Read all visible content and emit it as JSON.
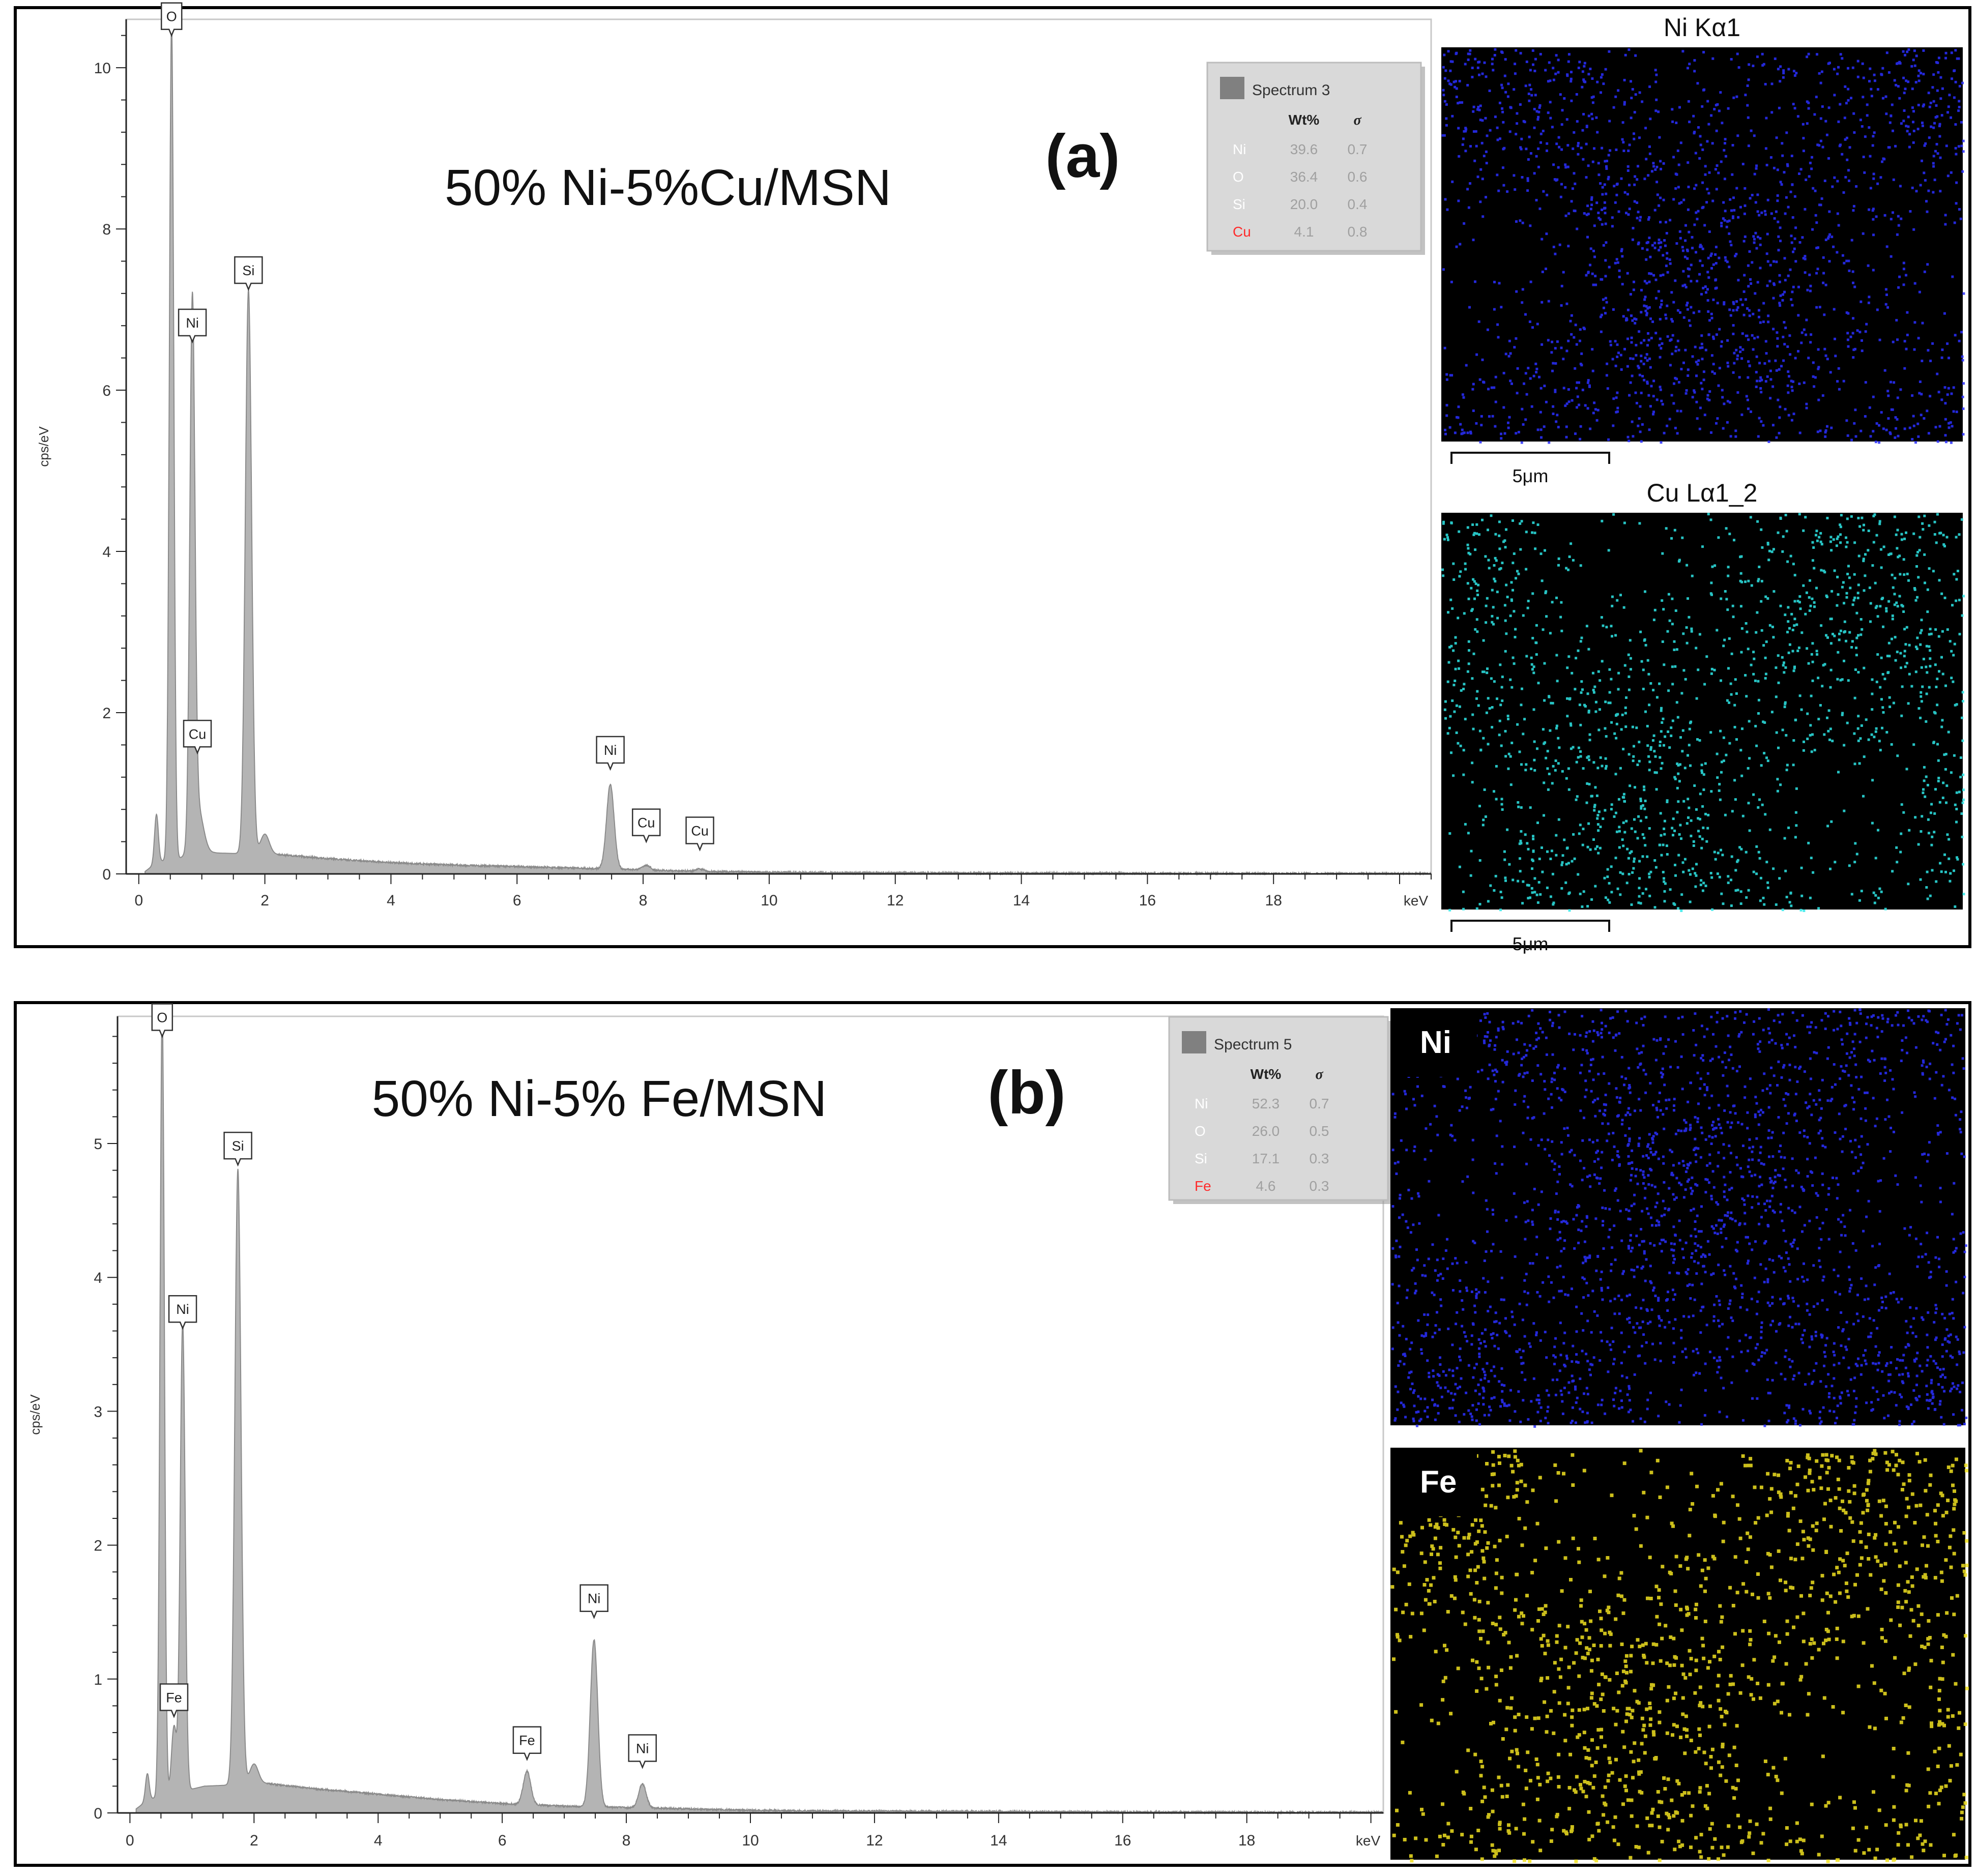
{
  "chart_data": [
    {
      "type": "area",
      "panel_label": "(a)",
      "sample": "50% Ni-5%Cu/MSN",
      "ylabel": "cps/eV",
      "xlabel": "keV",
      "xlim": [
        -0.2,
        20.5
      ],
      "ylim": [
        0,
        10.6
      ],
      "xticks": [
        "0",
        "2",
        "4",
        "6",
        "8",
        "10",
        "12",
        "14",
        "16",
        "18"
      ],
      "yticks": [
        "0",
        "2",
        "4",
        "6",
        "8",
        "10"
      ],
      "baseline": [
        [
          0.1,
          0.03
        ],
        [
          0.3,
          0.15
        ],
        [
          1.2,
          0.26
        ],
        [
          2.2,
          0.24
        ],
        [
          3,
          0.19
        ],
        [
          4,
          0.14
        ],
        [
          5,
          0.11
        ],
        [
          6,
          0.09
        ],
        [
          7,
          0.07
        ],
        [
          8,
          0.05
        ],
        [
          9,
          0.03
        ],
        [
          10,
          0.02
        ],
        [
          11,
          0.015
        ],
        [
          14,
          0.01
        ],
        [
          18,
          0.005
        ],
        [
          20.5,
          0.005
        ]
      ],
      "peaks": [
        {
          "x": 0.28,
          "h": 0.6,
          "w": 0.03
        },
        {
          "x": 0.52,
          "h": 10.4,
          "w": 0.035
        },
        {
          "x": 0.85,
          "h": 6.6,
          "w": 0.04
        },
        {
          "x": 0.93,
          "h": 0.6,
          "w": 0.09
        },
        {
          "x": 1.74,
          "h": 7.0,
          "w": 0.05
        },
        {
          "x": 2.0,
          "h": 0.25,
          "w": 0.07
        },
        {
          "x": 7.48,
          "h": 1.05,
          "w": 0.06
        },
        {
          "x": 8.05,
          "h": 0.06,
          "w": 0.06
        },
        {
          "x": 8.9,
          "h": 0.03,
          "w": 0.06
        }
      ],
      "peak_labels": [
        {
          "text": "O",
          "x": 0.52,
          "y": 10.4
        },
        {
          "text": "Ni",
          "x": 0.85,
          "y": 6.6
        },
        {
          "text": "Si",
          "x": 1.74,
          "y": 7.25
        },
        {
          "text": "Cu",
          "x": 0.93,
          "y": 1.5
        },
        {
          "text": "Ni",
          "x": 7.48,
          "y": 1.3
        },
        {
          "text": "Cu",
          "x": 8.05,
          "y": 0.4
        },
        {
          "text": "Cu",
          "x": 8.9,
          "y": 0.3
        }
      ],
      "legend": {
        "title": "Spectrum 3",
        "headers": [
          "Wt%",
          "σ"
        ],
        "rows": [
          {
            "el": "Ni",
            "wt": "39.6",
            "sigma": "0.7",
            "color": "#ffffff"
          },
          {
            "el": "O",
            "wt": "36.4",
            "sigma": "0.6",
            "color": "#ffffff"
          },
          {
            "el": "Si",
            "wt": "20.0",
            "sigma": "0.4",
            "color": "#ffffff"
          },
          {
            "el": "Cu",
            "wt": "4.1",
            "sigma": "0.8",
            "color": "#ff2a2a"
          }
        ]
      },
      "maps": [
        {
          "title": "Ni Kα1",
          "color": "#2a2fff",
          "density": 0.55,
          "scale": "5μm"
        },
        {
          "title": "Cu Lα1_2",
          "color": "#2ee6e6",
          "density": 0.45,
          "scale": "5μm"
        }
      ]
    },
    {
      "type": "area",
      "panel_label": "(b)",
      "sample": "50% Ni-5% Fe/MSN",
      "ylabel": "cps/eV",
      "xlabel": "keV",
      "xlim": [
        -0.2,
        20.2
      ],
      "ylim": [
        0,
        5.95
      ],
      "xticks": [
        "0",
        "2",
        "4",
        "6",
        "8",
        "10",
        "12",
        "14",
        "16",
        "18"
      ],
      "yticks": [
        "0",
        "1",
        "2",
        "3",
        "4",
        "5"
      ],
      "baseline": [
        [
          0.1,
          0.03
        ],
        [
          0.3,
          0.1
        ],
        [
          1.2,
          0.2
        ],
        [
          2.2,
          0.22
        ],
        [
          3,
          0.18
        ],
        [
          4,
          0.14
        ],
        [
          5,
          0.1
        ],
        [
          6,
          0.07
        ],
        [
          7,
          0.05
        ],
        [
          8,
          0.04
        ],
        [
          9,
          0.03
        ],
        [
          10,
          0.02
        ],
        [
          11,
          0.015
        ],
        [
          14,
          0.01
        ],
        [
          18,
          0.005
        ],
        [
          20.2,
          0.005
        ]
      ],
      "peaks": [
        {
          "x": 0.28,
          "h": 0.2,
          "w": 0.03
        },
        {
          "x": 0.52,
          "h": 5.9,
          "w": 0.035
        },
        {
          "x": 0.71,
          "h": 0.5,
          "w": 0.04
        },
        {
          "x": 0.85,
          "h": 3.5,
          "w": 0.04
        },
        {
          "x": 1.74,
          "h": 4.6,
          "w": 0.05
        },
        {
          "x": 2.0,
          "h": 0.15,
          "w": 0.07
        },
        {
          "x": 6.4,
          "h": 0.25,
          "w": 0.06
        },
        {
          "x": 7.48,
          "h": 1.25,
          "w": 0.06
        },
        {
          "x": 8.26,
          "h": 0.18,
          "w": 0.06
        }
      ],
      "peak_labels": [
        {
          "text": "O",
          "x": 0.52,
          "y": 5.8
        },
        {
          "text": "Ni",
          "x": 0.85,
          "y": 3.62
        },
        {
          "text": "Si",
          "x": 1.74,
          "y": 4.84
        },
        {
          "text": "Fe",
          "x": 0.71,
          "y": 0.72
        },
        {
          "text": "Fe",
          "x": 6.4,
          "y": 0.4
        },
        {
          "text": "Ni",
          "x": 7.48,
          "y": 1.46
        },
        {
          "text": "Ni",
          "x": 8.26,
          "y": 0.34
        }
      ],
      "legend": {
        "title": "Spectrum 5",
        "headers": [
          "Wt%",
          "σ"
        ],
        "rows": [
          {
            "el": "Ni",
            "wt": "52.3",
            "sigma": "0.7",
            "color": "#ffffff"
          },
          {
            "el": "O",
            "wt": "26.0",
            "sigma": "0.5",
            "color": "#ffffff"
          },
          {
            "el": "Si",
            "wt": "17.1",
            "sigma": "0.3",
            "color": "#ffffff"
          },
          {
            "el": "Fe",
            "wt": "4.6",
            "sigma": "0.3",
            "color": "#ff2a2a"
          }
        ]
      },
      "maps": [
        {
          "title": "Ni",
          "color": "#2a2fff",
          "density": 0.6
        },
        {
          "title": "Fe",
          "color": "#f0e020",
          "density": 0.35
        }
      ]
    }
  ]
}
